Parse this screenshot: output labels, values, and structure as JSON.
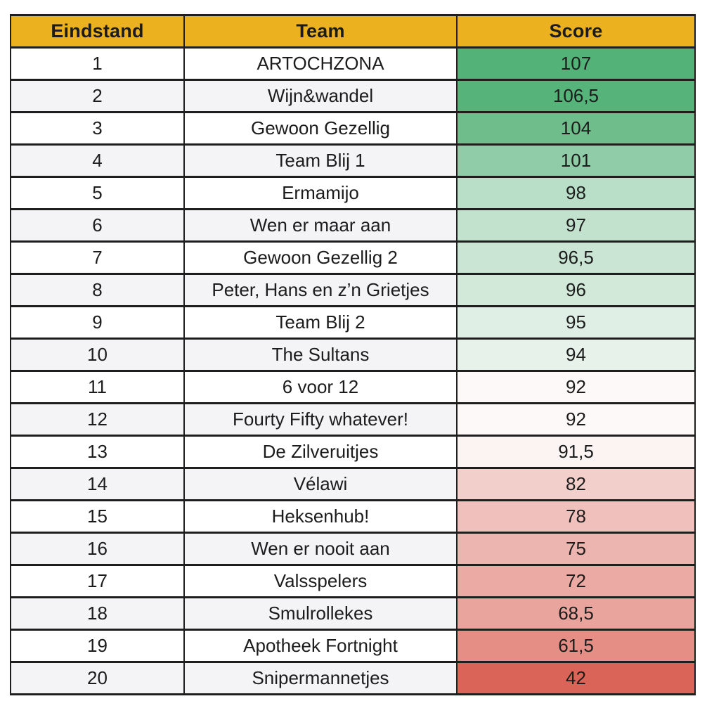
{
  "page": {
    "background": "#FFFFFF"
  },
  "table": {
    "header": {
      "labels": [
        "Eindstand",
        "Team",
        "Score"
      ],
      "bg": "#EBB11E",
      "text_color": "#1C1C1C"
    },
    "style": {
      "border_color": "#1E1E1E",
      "row_bg_odd": "#FFFFFF",
      "row_bg_even": "#F4F4F6"
    },
    "rows": [
      {
        "rank": "1",
        "team": "ARTOCHZONA",
        "score": "107",
        "score_bg": "#53B277"
      },
      {
        "rank": "2",
        "team": "Wijn&wandel",
        "score": "106,5",
        "score_bg": "#56B379"
      },
      {
        "rank": "3",
        "team": "Gewoon Gezellig",
        "score": "104",
        "score_bg": "#6EBD8B"
      },
      {
        "rank": "4",
        "team": "Team Blij 1",
        "score": "101",
        "score_bg": "#90CCA7"
      },
      {
        "rank": "5",
        "team": "Ermamijo",
        "score": "98",
        "score_bg": "#BADFC8"
      },
      {
        "rank": "6",
        "team": "Wen er maar aan",
        "score": "97",
        "score_bg": "#C3E2CE"
      },
      {
        "rank": "7",
        "team": "Gewoon Gezellig 2",
        "score": "96,5",
        "score_bg": "#CAE5D4"
      },
      {
        "rank": "8",
        "team": "Peter, Hans en z’n Grietjes",
        "score": "96",
        "score_bg": "#D2E9DA"
      },
      {
        "rank": "9",
        "team": "Team Blij 2",
        "score": "95",
        "score_bg": "#DFEFE5"
      },
      {
        "rank": "10",
        "team": "The Sultans",
        "score": "94",
        "score_bg": "#E7F2EA"
      },
      {
        "rank": "11",
        "team": "6 voor 12",
        "score": "92",
        "score_bg": "#FDF9F8"
      },
      {
        "rank": "12",
        "team": "Fourty Fifty whatever!",
        "score": "92",
        "score_bg": "#FDF9F8"
      },
      {
        "rank": "13",
        "team": "De Zilveruitjes",
        "score": "91,5",
        "score_bg": "#FBF4F2"
      },
      {
        "rank": "14",
        "team": "Vélawi",
        "score": "82",
        "score_bg": "#F3CFCC"
      },
      {
        "rank": "15",
        "team": "Heksenhub!",
        "score": "78",
        "score_bg": "#F0C1BC"
      },
      {
        "rank": "16",
        "team": "Wen er nooit aan",
        "score": "75",
        "score_bg": "#EDB5AF"
      },
      {
        "rank": "17",
        "team": "Valsspelers",
        "score": "72",
        "score_bg": "#EBABA4"
      },
      {
        "rank": "18",
        "team": "Smulrollekes",
        "score": "68,5",
        "score_bg": "#E9A59D"
      },
      {
        "rank": "19",
        "team": "Apotheek Fortnight",
        "score": "61,5",
        "score_bg": "#E48E85"
      },
      {
        "rank": "20",
        "team": "Snipermannetjes",
        "score": "42",
        "score_bg": "#DB6459"
      }
    ]
  },
  "chart_data": {
    "type": "table",
    "title": "",
    "columns": [
      "Eindstand",
      "Team",
      "Score"
    ],
    "rows": [
      [
        1,
        "ARTOCHZONA",
        107
      ],
      [
        2,
        "Wijn&wandel",
        106.5
      ],
      [
        3,
        "Gewoon Gezellig",
        104
      ],
      [
        4,
        "Team Blij 1",
        101
      ],
      [
        5,
        "Ermamijo",
        98
      ],
      [
        6,
        "Wen er maar aan",
        97
      ],
      [
        7,
        "Gewoon Gezellig 2",
        96.5
      ],
      [
        8,
        "Peter, Hans en z’n Grietjes",
        96
      ],
      [
        9,
        "Team Blij 2",
        95
      ],
      [
        10,
        "The Sultans",
        94
      ],
      [
        11,
        "6 voor 12",
        92
      ],
      [
        12,
        "Fourty Fifty whatever!",
        92
      ],
      [
        13,
        "De Zilveruitjes",
        91.5
      ],
      [
        14,
        "Vélawi",
        82
      ],
      [
        15,
        "Heksenhub!",
        78
      ],
      [
        16,
        "Wen er nooit aan",
        75
      ],
      [
        17,
        "Valsspelers",
        72
      ],
      [
        18,
        "Smulrollekes",
        68.5
      ],
      [
        19,
        "Apotheek Fortnight",
        61.5
      ],
      [
        20,
        "Snipermannetjes",
        42
      ]
    ],
    "layout_hints": {
      "score_color_scale": "green-to-red gradient on Score column",
      "score_scale_max_color": "#53B277",
      "score_scale_mid_color": "#FDF9F8",
      "score_scale_min_color": "#DB6459",
      "header_bg": "#EBB11E",
      "grid": "on"
    }
  }
}
